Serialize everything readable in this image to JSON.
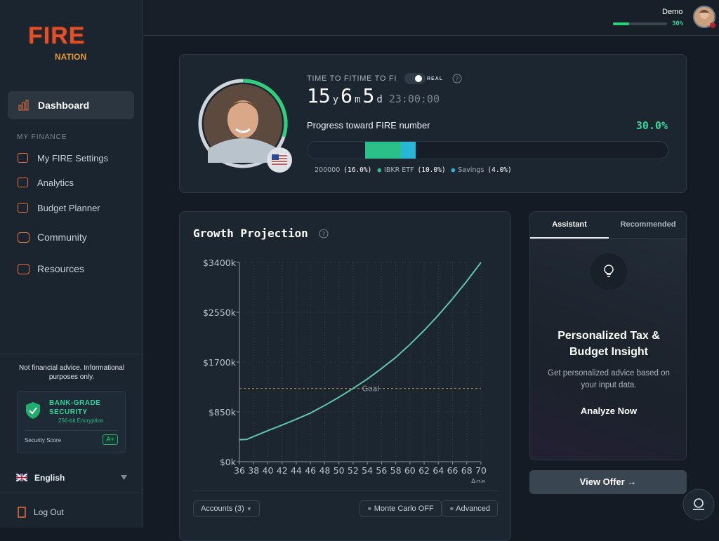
{
  "sidebar": {
    "logo": {
      "top": "FIRE",
      "bottom": "NATION"
    },
    "dashboard": "Dashboard",
    "section": "MY FINANCE",
    "finance_nav": [
      "My FIRE Settings",
      "Analytics",
      "Budget Planner"
    ],
    "more_nav": [
      "Community",
      "Resources"
    ],
    "disclaimer": "Not financial advice. Informational purposes only.",
    "security": {
      "title": "BANK-GRADE SECURITY",
      "subtitle": "256-bit Encryption",
      "score_label": "Security Score",
      "score": "A+"
    },
    "language": "English",
    "logout": "Log Out"
  },
  "header": {
    "user": "Demo",
    "progress": {
      "value": 30,
      "label": "30%"
    }
  },
  "fi_card": {
    "label": "TIME TO FITIME TO FI",
    "toggle": "REAL",
    "time": [
      {
        "value": 15,
        "unit": "y"
      },
      {
        "value": 6,
        "unit": "m"
      },
      {
        "value": 5,
        "unit": "d"
      }
    ],
    "clock": "23:00:00",
    "progress_label": "Progress toward FIRE number",
    "progress": {
      "value": 30,
      "label": "30.0%"
    },
    "breakdown": [
      {
        "name": "200000",
        "value": 16,
        "label": "(16.0%)",
        "color": "#1a2430"
      },
      {
        "name": "IBKR ETF",
        "value": 10,
        "label": "(10.0%)",
        "color": "#2bbf8a"
      },
      {
        "name": "Savings",
        "value": 4,
        "label": "(4.0%)",
        "color": "#27b6d6"
      }
    ]
  },
  "chart_data": {
    "type": "line",
    "title": "Growth Projection",
    "xlabel": "Age",
    "x": [
      36,
      37,
      38,
      40,
      42,
      44,
      46,
      48,
      50,
      52,
      54,
      56,
      58,
      60,
      62,
      64,
      66,
      68,
      70
    ],
    "values": [
      375000,
      380000,
      430000,
      530000,
      625000,
      725000,
      830000,
      960000,
      1100000,
      1250000,
      1410000,
      1590000,
      1780000,
      2000000,
      2240000,
      2500000,
      2780000,
      3080000,
      3400000
    ],
    "color": "#5fc4b0",
    "xlim": [
      36,
      70
    ],
    "xticks": [
      36,
      38,
      40,
      42,
      44,
      46,
      48,
      50,
      52,
      54,
      56,
      58,
      60,
      62,
      64,
      66,
      68,
      70
    ],
    "ylim": [
      0,
      3400000
    ],
    "yticks": [
      {
        "value": 0,
        "label": "$0k"
      },
      {
        "value": 850000,
        "label": "$850k"
      },
      {
        "value": 1700000,
        "label": "$1700k"
      },
      {
        "value": 2550000,
        "label": "$2550k"
      },
      {
        "value": 3400000,
        "label": "$3400k"
      }
    ],
    "goal": {
      "value": 1250000,
      "label": "Goal",
      "color": "#b8864a"
    },
    "grid": true
  },
  "chart_controls": {
    "accounts": "Accounts (3)",
    "monte_carlo": "Monte Carlo OFF",
    "advanced": "Advanced"
  },
  "assistant": {
    "tabs": [
      "Assistant",
      "Recommended"
    ],
    "heading": "Personalized Tax & Budget Insight",
    "description": "Get personalized advice based on your input data.",
    "action": "Analyze Now",
    "offer": "View Offer →"
  }
}
